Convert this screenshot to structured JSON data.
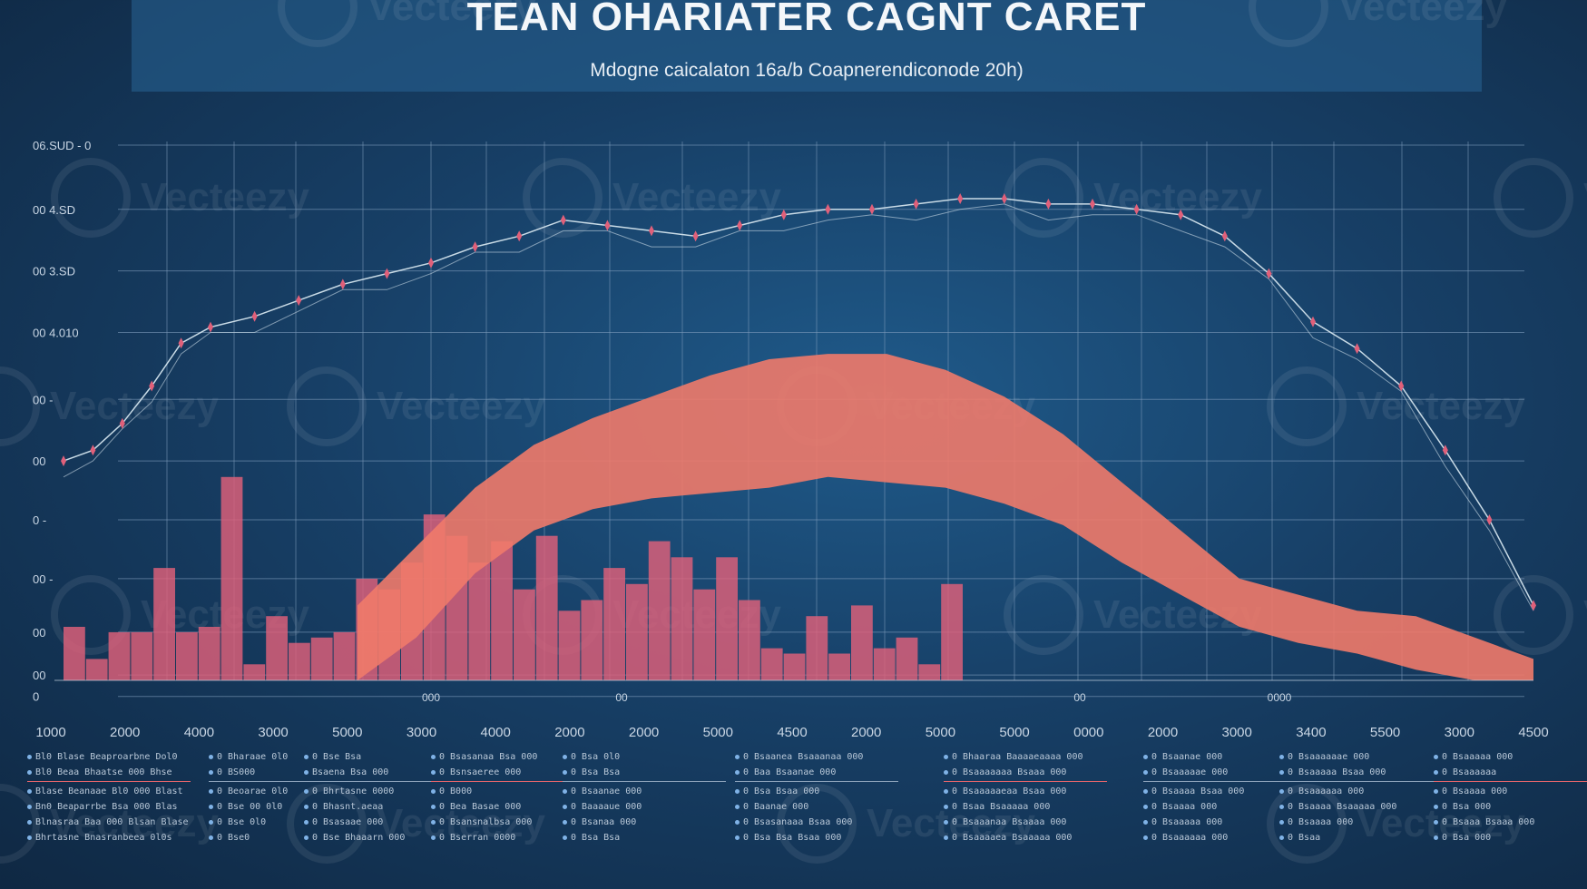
{
  "header": {
    "title": "TEAN OHARIATER CAGNT CARET",
    "subtitle": "Mdogne caicalaton 16a/b Coapnerendiconode 20h)"
  },
  "chart_data": {
    "type": "line",
    "title": "TEAN OHARIATER CAGNT CARET",
    "subtitle": "Mdogne caicalaton 16a/b Coapnerendiconode 20h)",
    "y_tick_labels": [
      "06.SUD - 0",
      "00  4.SD",
      "00  3.SD",
      "00  4.010",
      "00 -",
      "00",
      "0 -",
      "00 -",
      "00",
      "00",
      "0"
    ],
    "x_tick_labels_top": [
      "000",
      "00",
      "00",
      "0000"
    ],
    "x_tick_labels": [
      "1000",
      "2000",
      "4000",
      "3000",
      "5000",
      "3000",
      "4000",
      "2000",
      "2000",
      "5000",
      "4500",
      "2000",
      "5000",
      "5000",
      "0000",
      "2000",
      "3000",
      "3400",
      "5500",
      "3000",
      "4500"
    ],
    "ylim": [
      0,
      100
    ],
    "xlim": [
      0,
      100
    ],
    "grid": true,
    "series": [
      {
        "type": "line",
        "color": "#c9dbe6",
        "x": [
          0,
          2,
          4,
          6,
          8,
          10,
          13,
          16,
          19,
          22,
          25,
          28,
          31,
          34,
          37,
          40,
          43,
          46,
          49,
          52,
          55,
          58,
          61,
          64,
          67,
          70,
          73,
          76,
          79,
          82,
          85,
          88,
          91,
          94,
          97,
          100
        ],
        "y": [
          41,
          43,
          48,
          55,
          63,
          66,
          68,
          71,
          74,
          76,
          78,
          81,
          83,
          86,
          85,
          84,
          83,
          85,
          87,
          88,
          88,
          89,
          90,
          90,
          89,
          89,
          88,
          87,
          83,
          76,
          67,
          62,
          55,
          43,
          30,
          14
        ]
      },
      {
        "type": "area",
        "color": "#f07a6a",
        "x": [
          20,
          24,
          28,
          32,
          36,
          40,
          44,
          48,
          52,
          56,
          60,
          64,
          68,
          72,
          76,
          80,
          84,
          88,
          92,
          96,
          100
        ],
        "y_top": [
          14,
          25,
          36,
          44,
          49,
          53,
          57,
          60,
          61,
          61,
          58,
          53,
          46,
          37,
          28,
          19,
          16,
          13,
          12,
          8,
          4
        ],
        "y_bottom": [
          0,
          8,
          20,
          28,
          32,
          34,
          35,
          36,
          38,
          37,
          36,
          33,
          29,
          22,
          16,
          10,
          7,
          5,
          2,
          0,
          0
        ]
      },
      {
        "type": "bar",
        "color": "#e0607a",
        "categories": [
          0,
          1,
          2,
          3,
          4,
          5,
          6,
          7,
          8,
          9,
          10,
          11,
          12,
          13,
          14,
          15,
          16,
          17,
          18,
          19,
          20,
          21,
          22,
          23,
          24,
          25,
          26,
          27,
          28,
          29,
          30,
          31,
          32,
          33,
          34,
          35,
          36,
          37,
          38,
          39
        ],
        "values": [
          10,
          4,
          9,
          9,
          21,
          9,
          10,
          38,
          3,
          12,
          7,
          8,
          9,
          19,
          17,
          22,
          31,
          27,
          22,
          26,
          17,
          27,
          13,
          15,
          21,
          18,
          26,
          23,
          17,
          23,
          15,
          6,
          5,
          12,
          5,
          14,
          6,
          8,
          3,
          18
        ]
      }
    ]
  },
  "footer": {
    "columns": [
      {
        "rows": [
          "Bl0 Blase Beaproarbne Dol0",
          "Bl0 Beaa Bhaatse 000 Bhse",
          "Blase Beanaae Bl0 000 Blast",
          "Bn0 Beaparrbe Bsa 000 Blas",
          "Blnasraa Baa 000 Blsan Blase",
          "Bhrtasne Bnasranbeea 0l0s"
        ]
      },
      {
        "rows": [
          "0 Bharaae 0l0",
          "0 BS000",
          "0 Beoarae 0l0",
          "0 Bse 00 0l0",
          "0 Bse 0l0",
          "0 Bse0"
        ]
      },
      {
        "rows": [
          "0 Bse Bsa",
          "Bsaena Bsa 000",
          "0 Bhrtasne 0000",
          "0 Bhasnt.aeaa",
          "0 Bsasaae 000",
          "0 Bse Bhaaarn 000"
        ]
      },
      {
        "rows": [
          "0 Bsasanaa Bsa 000",
          "0 Bsnsaeree 000",
          "0 B000",
          "0 Bea Basae 000",
          "0 Bsansnalbsa 000",
          "0 Bserran 0000"
        ]
      },
      {
        "rows": [
          "0 Bsa 0l0",
          "0 Bsa Bsa",
          "0 Bsaanae 000",
          "0 Baaaaue 000",
          "0 Bsanaa 000",
          "0 Bsa Bsa"
        ]
      },
      {
        "rows": [
          "0 Bsaanea Bsaaanaa 000",
          "0 Baa Bsaanae 000",
          "0 Bsa Bsaa 000",
          "0 Baanae 000",
          "0 Bsasanaaa Bsaa 000",
          "0 Bsa Bsa Bsaa 000"
        ]
      },
      {
        "rows": [
          "0 Bhaaraa Baaaaeaaaa 000",
          "0 Bsaaaaaaa Bsaaa 000",
          "0 Bsaaaaaeaa Bsaa 000",
          "0 Bsaa Bsaaaaa 000",
          "0 Bsaaanaa Bsaaaa 000",
          "0 Bsaaaaea Bsaaaaa 000"
        ]
      },
      {
        "rows": [
          "0 Bsaanae 000",
          "0 Bsaaaaae 000",
          "0 Bsaaaa Bsaa 000",
          "0 Bsaaaa 000",
          "0 Bsaaaaa 000",
          "0 Bsaaaaaa 000"
        ]
      },
      {
        "rows": [
          "0 Bsaaaaaae 000",
          "0 Bsaaaaa Bsaa 000",
          "0 Bsaaaaaa 000",
          "0 Bsaaaa Bsaaaaa 000",
          "0 Bsaaaa 000",
          "0 Bsaa"
        ]
      },
      {
        "rows": [
          "0 Bsaaaaa 000",
          "0 Bsaaaaaa",
          "0 Bsaaaa 000",
          "0 Bsa 000",
          "0 Bsaaa Bsaaa 000",
          "0 Bsa 000"
        ]
      }
    ]
  },
  "watermark": {
    "text": "Vecteezy"
  },
  "colors": {
    "background": "#173f66",
    "grid": "#7f9cbc",
    "line": "#c9dbe6",
    "area": "#f07a6a",
    "bars": "#e0607a",
    "marker": "#e0607a"
  }
}
